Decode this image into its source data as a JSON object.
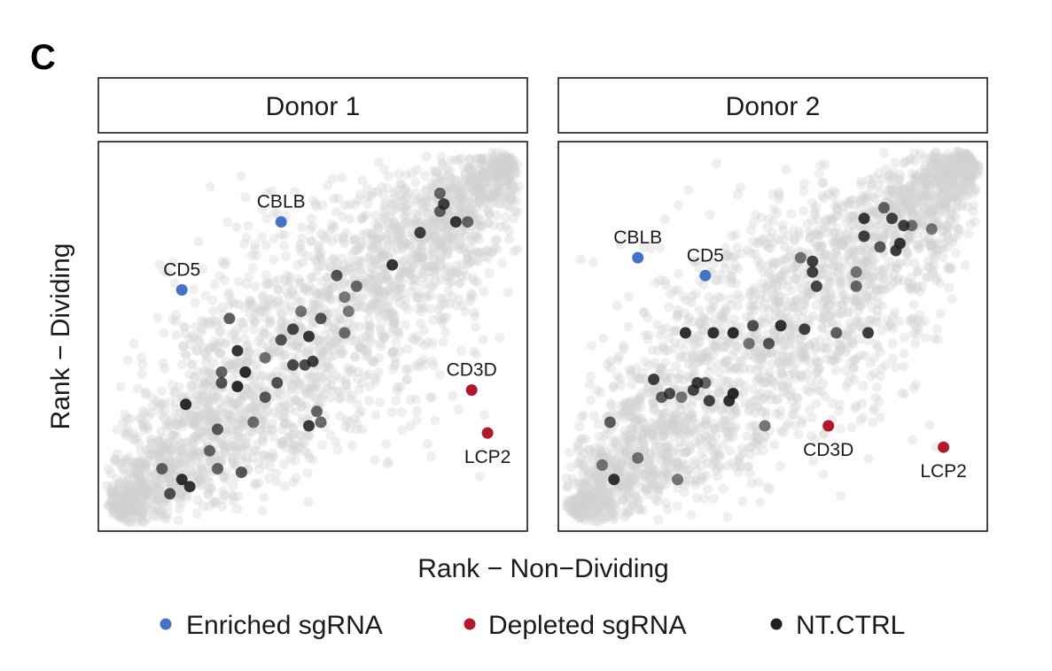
{
  "panel_letter": "C",
  "chart_data": {
    "type": "scatter",
    "xlabel": "Rank − Non−Dividing",
    "ylabel": "Rank − Dividing",
    "xlim": [
      0,
      1
    ],
    "ylim": [
      0,
      1
    ],
    "grid": false,
    "legend_position": "bottom",
    "legend": [
      {
        "label": "Enriched sgRNA",
        "color": "#4472c4"
      },
      {
        "label": "Depleted sgRNA",
        "color": "#b2182b"
      },
      {
        "label": "NT.CTRL",
        "color": "#1f1f1f"
      }
    ],
    "background_color": "#d0d0d0",
    "panels": [
      {
        "title": "Donor 1",
        "enriched": [
          {
            "label": "CBLB",
            "x": 0.42,
            "y": 0.82
          },
          {
            "label": "CD5",
            "x": 0.17,
            "y": 0.63
          }
        ],
        "depleted": [
          {
            "label": "CD3D",
            "x": 0.9,
            "y": 0.35
          },
          {
            "label": "LCP2",
            "x": 0.94,
            "y": 0.23
          }
        ],
        "nt_ctrl": [
          [
            0.82,
            0.9
          ],
          [
            0.83,
            0.87
          ],
          [
            0.89,
            0.82
          ],
          [
            0.86,
            0.82
          ],
          [
            0.77,
            0.79
          ],
          [
            0.82,
            0.85
          ],
          [
            0.56,
            0.67
          ],
          [
            0.61,
            0.64
          ],
          [
            0.58,
            0.61
          ],
          [
            0.7,
            0.7
          ],
          [
            0.59,
            0.57
          ],
          [
            0.47,
            0.57
          ],
          [
            0.52,
            0.55
          ],
          [
            0.45,
            0.52
          ],
          [
            0.58,
            0.51
          ],
          [
            0.49,
            0.5
          ],
          [
            0.42,
            0.49
          ],
          [
            0.29,
            0.55
          ],
          [
            0.31,
            0.46
          ],
          [
            0.38,
            0.44
          ],
          [
            0.33,
            0.4
          ],
          [
            0.27,
            0.4
          ],
          [
            0.5,
            0.43
          ],
          [
            0.48,
            0.42
          ],
          [
            0.45,
            0.42
          ],
          [
            0.27,
            0.37
          ],
          [
            0.31,
            0.36
          ],
          [
            0.38,
            0.33
          ],
          [
            0.41,
            0.37
          ],
          [
            0.51,
            0.29
          ],
          [
            0.52,
            0.26
          ],
          [
            0.49,
            0.25
          ],
          [
            0.35,
            0.26
          ],
          [
            0.26,
            0.24
          ],
          [
            0.18,
            0.31
          ],
          [
            0.24,
            0.18
          ],
          [
            0.17,
            0.1
          ],
          [
            0.26,
            0.13
          ],
          [
            0.32,
            0.12
          ],
          [
            0.12,
            0.13
          ],
          [
            0.19,
            0.08
          ],
          [
            0.14,
            0.06
          ]
        ]
      },
      {
        "title": "Donor 2",
        "enriched": [
          {
            "label": "CBLB",
            "x": 0.16,
            "y": 0.72
          },
          {
            "label": "CD5",
            "x": 0.33,
            "y": 0.67
          }
        ],
        "depleted": [
          {
            "label": "CD3D",
            "x": 0.64,
            "y": 0.25
          },
          {
            "label": "LCP2",
            "x": 0.93,
            "y": 0.19
          }
        ],
        "nt_ctrl": [
          [
            0.78,
            0.86
          ],
          [
            0.8,
            0.83
          ],
          [
            0.73,
            0.83
          ],
          [
            0.85,
            0.81
          ],
          [
            0.83,
            0.81
          ],
          [
            0.9,
            0.8
          ],
          [
            0.73,
            0.78
          ],
          [
            0.77,
            0.75
          ],
          [
            0.82,
            0.76
          ],
          [
            0.81,
            0.74
          ],
          [
            0.57,
            0.72
          ],
          [
            0.6,
            0.71
          ],
          [
            0.6,
            0.68
          ],
          [
            0.71,
            0.68
          ],
          [
            0.61,
            0.64
          ],
          [
            0.71,
            0.64
          ],
          [
            0.45,
            0.53
          ],
          [
            0.52,
            0.53
          ],
          [
            0.58,
            0.52
          ],
          [
            0.66,
            0.51
          ],
          [
            0.74,
            0.51
          ],
          [
            0.28,
            0.51
          ],
          [
            0.35,
            0.51
          ],
          [
            0.4,
            0.51
          ],
          [
            0.49,
            0.48
          ],
          [
            0.44,
            0.48
          ],
          [
            0.2,
            0.38
          ],
          [
            0.31,
            0.37
          ],
          [
            0.33,
            0.37
          ],
          [
            0.24,
            0.34
          ],
          [
            0.3,
            0.35
          ],
          [
            0.39,
            0.32
          ],
          [
            0.4,
            0.34
          ],
          [
            0.22,
            0.33
          ],
          [
            0.27,
            0.33
          ],
          [
            0.34,
            0.32
          ],
          [
            0.48,
            0.25
          ],
          [
            0.09,
            0.26
          ],
          [
            0.16,
            0.16
          ],
          [
            0.26,
            0.1
          ],
          [
            0.07,
            0.14
          ],
          [
            0.1,
            0.1
          ]
        ]
      }
    ]
  }
}
